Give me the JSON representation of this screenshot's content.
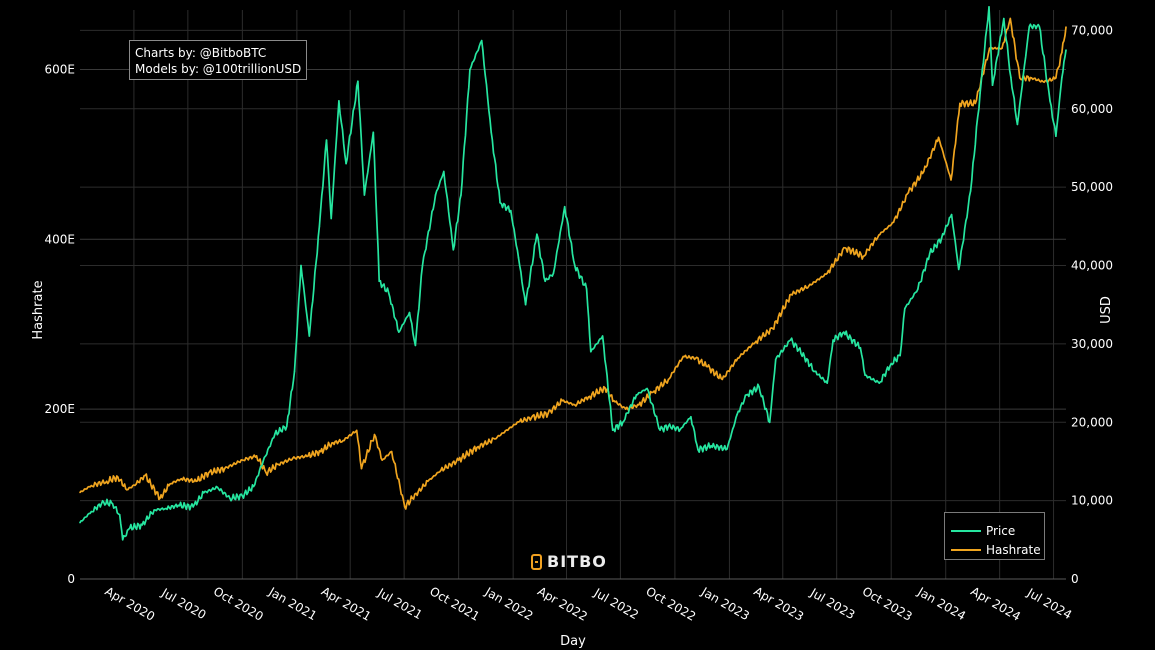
{
  "credits": {
    "line1": "Charts by: @BitboBTC",
    "line2": "Models by: @100trillionUSD"
  },
  "logo_text": "BITBO",
  "colors": {
    "price": "#26e6a0",
    "hashrate": "#f0a51f",
    "grid": "#2c2c2c",
    "background": "#000000"
  },
  "chart_data": {
    "type": "line",
    "xlabel": "Day",
    "ylabel_left": "Hashrate",
    "ylabel_right": "USD",
    "x_ticks": [
      "Apr 2020",
      "Jul 2020",
      "Oct 2020",
      "Jan 2021",
      "Apr 2021",
      "Jul 2021",
      "Oct 2021",
      "Jan 2022",
      "Apr 2022",
      "Jul 2022",
      "Oct 2022",
      "Jan 2023",
      "Apr 2023",
      "Jul 2023",
      "Oct 2023",
      "Jan 2024",
      "Apr 2024",
      "Jul 2024"
    ],
    "x_range": [
      "2020-01-01",
      "2024-07-22"
    ],
    "y_left_ticks": [
      "0",
      "200E",
      "400E",
      "600E"
    ],
    "y_left_range": [
      0,
      670
    ],
    "y_right_ticks": [
      "0",
      "10,000",
      "20,000",
      "30,000",
      "40,000",
      "50,000",
      "60,000",
      "70,000"
    ],
    "y_right_range": [
      0,
      72600
    ],
    "legend": {
      "placement": "bottom-right"
    },
    "grid": true,
    "series": [
      {
        "name": "Price",
        "axis": "right",
        "color": "#26e6a0",
        "points": [
          [
            "2020-01-01",
            7200
          ],
          [
            "2020-01-20",
            8600
          ],
          [
            "2020-02-10",
            9800
          ],
          [
            "2020-02-25",
            9600
          ],
          [
            "2020-03-08",
            8200
          ],
          [
            "2020-03-13",
            5000
          ],
          [
            "2020-03-25",
            6500
          ],
          [
            "2020-04-15",
            6900
          ],
          [
            "2020-05-05",
            8800
          ],
          [
            "2020-05-25",
            9000
          ],
          [
            "2020-06-15",
            9400
          ],
          [
            "2020-07-10",
            9200
          ],
          [
            "2020-07-28",
            11000
          ],
          [
            "2020-08-20",
            11700
          ],
          [
            "2020-09-10",
            10300
          ],
          [
            "2020-10-01",
            10600
          ],
          [
            "2020-10-20",
            11800
          ],
          [
            "2020-11-05",
            15000
          ],
          [
            "2020-11-25",
            18500
          ],
          [
            "2020-12-15",
            19500
          ],
          [
            "2020-12-28",
            26500
          ],
          [
            "2021-01-08",
            40000
          ],
          [
            "2021-01-22",
            31000
          ],
          [
            "2021-02-08",
            45000
          ],
          [
            "2021-02-20",
            56000
          ],
          [
            "2021-02-28",
            46000
          ],
          [
            "2021-03-13",
            61000
          ],
          [
            "2021-03-25",
            53000
          ],
          [
            "2021-04-14",
            63500
          ],
          [
            "2021-04-25",
            49000
          ],
          [
            "2021-05-10",
            57000
          ],
          [
            "2021-05-20",
            38000
          ],
          [
            "2021-06-05",
            36500
          ],
          [
            "2021-06-22",
            31500
          ],
          [
            "2021-07-10",
            34000
          ],
          [
            "2021-07-20",
            29800
          ],
          [
            "2021-08-01",
            40000
          ],
          [
            "2021-08-23",
            49000
          ],
          [
            "2021-09-06",
            52000
          ],
          [
            "2021-09-22",
            42000
          ],
          [
            "2021-10-05",
            49000
          ],
          [
            "2021-10-20",
            65000
          ],
          [
            "2021-11-09",
            68700
          ],
          [
            "2021-11-25",
            57000
          ],
          [
            "2021-12-10",
            48000
          ],
          [
            "2021-12-28",
            47000
          ],
          [
            "2022-01-10",
            41000
          ],
          [
            "2022-01-22",
            35000
          ],
          [
            "2022-02-10",
            44000
          ],
          [
            "2022-02-24",
            38000
          ],
          [
            "2022-03-10",
            39000
          ],
          [
            "2022-03-29",
            47500
          ],
          [
            "2022-04-15",
            40000
          ],
          [
            "2022-05-05",
            37000
          ],
          [
            "2022-05-12",
            29000
          ],
          [
            "2022-06-01",
            31000
          ],
          [
            "2022-06-18",
            19000
          ],
          [
            "2022-07-05",
            20000
          ],
          [
            "2022-07-28",
            23500
          ],
          [
            "2022-08-15",
            24300
          ],
          [
            "2022-09-06",
            19000
          ],
          [
            "2022-09-20",
            19500
          ],
          [
            "2022-10-10",
            19100
          ],
          [
            "2022-10-28",
            20700
          ],
          [
            "2022-11-09",
            16500
          ],
          [
            "2022-12-01",
            17000
          ],
          [
            "2022-12-28",
            16600
          ],
          [
            "2023-01-14",
            21000
          ],
          [
            "2023-01-30",
            23500
          ],
          [
            "2023-02-20",
            24500
          ],
          [
            "2023-03-10",
            20000
          ],
          [
            "2023-03-20",
            28000
          ],
          [
            "2023-04-14",
            30500
          ],
          [
            "2023-04-28",
            29300
          ],
          [
            "2023-05-25",
            26500
          ],
          [
            "2023-06-15",
            25000
          ],
          [
            "2023-06-25",
            30500
          ],
          [
            "2023-07-13",
            31500
          ],
          [
            "2023-08-10",
            29500
          ],
          [
            "2023-08-18",
            26000
          ],
          [
            "2023-09-11",
            25000
          ],
          [
            "2023-10-01",
            27500
          ],
          [
            "2023-10-16",
            28500
          ],
          [
            "2023-10-24",
            34500
          ],
          [
            "2023-11-15",
            37000
          ],
          [
            "2023-12-05",
            41500
          ],
          [
            "2023-12-25",
            43500
          ],
          [
            "2024-01-11",
            46500
          ],
          [
            "2024-01-23",
            39500
          ],
          [
            "2024-02-12",
            49500
          ],
          [
            "2024-02-28",
            62000
          ],
          [
            "2024-03-14",
            73000
          ],
          [
            "2024-03-20",
            63000
          ],
          [
            "2024-04-08",
            71500
          ],
          [
            "2024-04-20",
            64000
          ],
          [
            "2024-05-01",
            58000
          ],
          [
            "2024-05-21",
            70500
          ],
          [
            "2024-06-07",
            70500
          ],
          [
            "2024-06-25",
            61000
          ],
          [
            "2024-07-05",
            56500
          ],
          [
            "2024-07-15",
            64000
          ],
          [
            "2024-07-22",
            67500
          ]
        ]
      },
      {
        "name": "Hashrate",
        "axis": "left",
        "color": "#f0a51f",
        "points": [
          [
            "2020-01-01",
            102
          ],
          [
            "2020-01-20",
            110
          ],
          [
            "2020-02-15",
            115
          ],
          [
            "2020-03-05",
            120
          ],
          [
            "2020-03-20",
            105
          ],
          [
            "2020-04-05",
            112
          ],
          [
            "2020-04-20",
            122
          ],
          [
            "2020-05-15",
            95
          ],
          [
            "2020-06-01",
            112
          ],
          [
            "2020-06-20",
            118
          ],
          [
            "2020-07-15",
            115
          ],
          [
            "2020-08-05",
            125
          ],
          [
            "2020-09-01",
            130
          ],
          [
            "2020-10-01",
            140
          ],
          [
            "2020-10-25",
            145
          ],
          [
            "2020-11-10",
            125
          ],
          [
            "2020-12-01",
            135
          ],
          [
            "2020-12-25",
            142
          ],
          [
            "2021-01-20",
            145
          ],
          [
            "2021-02-10",
            150
          ],
          [
            "2021-03-01",
            160
          ],
          [
            "2021-03-20",
            163
          ],
          [
            "2021-04-12",
            175
          ],
          [
            "2021-04-20",
            130
          ],
          [
            "2021-05-12",
            170
          ],
          [
            "2021-05-25",
            140
          ],
          [
            "2021-06-10",
            150
          ],
          [
            "2021-07-02",
            85
          ],
          [
            "2021-07-15",
            95
          ],
          [
            "2021-08-10",
            115
          ],
          [
            "2021-09-01",
            128
          ],
          [
            "2021-10-01",
            140
          ],
          [
            "2021-11-01",
            155
          ],
          [
            "2021-12-01",
            165
          ],
          [
            "2022-01-10",
            185
          ],
          [
            "2022-02-01",
            190
          ],
          [
            "2022-03-01",
            195
          ],
          [
            "2022-03-25",
            210
          ],
          [
            "2022-04-15",
            205
          ],
          [
            "2022-05-10",
            215
          ],
          [
            "2022-06-05",
            225
          ],
          [
            "2022-06-20",
            210
          ],
          [
            "2022-07-10",
            200
          ],
          [
            "2022-08-01",
            205
          ],
          [
            "2022-08-25",
            220
          ],
          [
            "2022-09-20",
            235
          ],
          [
            "2022-10-15",
            262
          ],
          [
            "2022-11-05",
            260
          ],
          [
            "2022-11-25",
            250
          ],
          [
            "2022-12-20",
            235
          ],
          [
            "2023-01-15",
            260
          ],
          [
            "2023-02-15",
            280
          ],
          [
            "2023-03-15",
            295
          ],
          [
            "2023-04-15",
            335
          ],
          [
            "2023-05-15",
            345
          ],
          [
            "2023-06-15",
            360
          ],
          [
            "2023-07-15",
            390
          ],
          [
            "2023-08-15",
            380
          ],
          [
            "2023-09-10",
            405
          ],
          [
            "2023-10-05",
            420
          ],
          [
            "2023-10-30",
            455
          ],
          [
            "2023-11-25",
            480
          ],
          [
            "2023-12-20",
            520
          ],
          [
            "2024-01-10",
            470
          ],
          [
            "2024-01-25",
            560
          ],
          [
            "2024-02-20",
            560
          ],
          [
            "2024-03-15",
            625
          ],
          [
            "2024-04-05",
            625
          ],
          [
            "2024-04-19",
            660
          ],
          [
            "2024-05-05",
            590
          ],
          [
            "2024-05-25",
            590
          ],
          [
            "2024-06-15",
            585
          ],
          [
            "2024-07-05",
            590
          ],
          [
            "2024-07-15",
            620
          ],
          [
            "2024-07-22",
            650
          ]
        ]
      }
    ]
  }
}
